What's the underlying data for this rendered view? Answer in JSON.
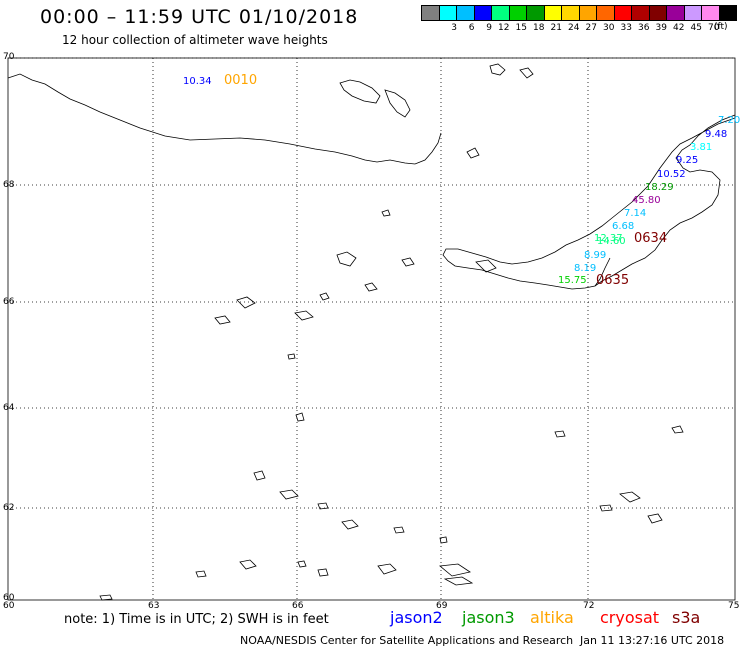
{
  "header": {
    "title": "00:00 – 11:59 UTC 01/10/2018",
    "subtitle": "12 hour collection of altimeter wave heights"
  },
  "scale": {
    "unit": "(ft)",
    "bins": [
      {
        "label": "",
        "color": "#808080"
      },
      {
        "label": "3",
        "color": "#00ffff"
      },
      {
        "label": "6",
        "color": "#00bfff"
      },
      {
        "label": "9",
        "color": "#0000ff"
      },
      {
        "label": "12",
        "color": "#00ff80"
      },
      {
        "label": "15",
        "color": "#00d000"
      },
      {
        "label": "18",
        "color": "#009900"
      },
      {
        "label": "21",
        "color": "#ffff00"
      },
      {
        "label": "24",
        "color": "#ffd700"
      },
      {
        "label": "27",
        "color": "#ffa500"
      },
      {
        "label": "30",
        "color": "#ff6600"
      },
      {
        "label": "33",
        "color": "#ff0000"
      },
      {
        "label": "36",
        "color": "#b00000"
      },
      {
        "label": "39",
        "color": "#800000"
      },
      {
        "label": "42",
        "color": "#990099"
      },
      {
        "label": "45",
        "color": "#cc99ff"
      },
      {
        "label": "70",
        "color": "#ff88ee"
      },
      {
        "label": "",
        "color": "#000000"
      }
    ]
  },
  "axes": {
    "lat_labels": [
      "70",
      "68",
      "66",
      "64",
      "62",
      "60"
    ],
    "lon_labels": [
      "60",
      "63",
      "66",
      "69",
      "72",
      "75"
    ]
  },
  "observations": [
    {
      "text": "10.34",
      "color": "#0000ff"
    },
    {
      "text": "0010",
      "color": "#ffa500"
    },
    {
      "text": "7.20",
      "color": "#00bfff"
    },
    {
      "text": "9.48",
      "color": "#0000ff"
    },
    {
      "text": "3.81",
      "color": "#00ffff"
    },
    {
      "text": "9.25",
      "color": "#0000ff"
    },
    {
      "text": "10.52",
      "color": "#0000ff"
    },
    {
      "text": "18.29",
      "color": "#009900"
    },
    {
      "text": "45.80",
      "color": "#990099"
    },
    {
      "text": "7.14",
      "color": "#00bfff"
    },
    {
      "text": "6.68",
      "color": "#00bfff"
    },
    {
      "text": "12.37",
      "color": "#00ff80"
    },
    {
      "text": "14.60",
      "color": "#00ff80"
    },
    {
      "text": "0634",
      "color": "#800000"
    },
    {
      "text": "8.99",
      "color": "#00bfff"
    },
    {
      "text": "8.19",
      "color": "#00bfff"
    },
    {
      "text": "15.75",
      "color": "#00d000"
    },
    {
      "text": "0635",
      "color": "#800000"
    }
  ],
  "footer": {
    "note": "note: 1) Time is in UTC; 2) SWH is in feet",
    "satellites": [
      {
        "name": "jason2",
        "color": "#0000ff"
      },
      {
        "name": "jason3",
        "color": "#009900"
      },
      {
        "name": "altika",
        "color": "#ffa500"
      },
      {
        "name": "cryosat",
        "color": "#ff0000"
      },
      {
        "name": "s3a",
        "color": "#800000"
      }
    ],
    "credit": "NOAA/NESDIS Center for Satellite Applications and Research",
    "timestamp": "Jan 11 13:27:16 UTC 2018"
  }
}
